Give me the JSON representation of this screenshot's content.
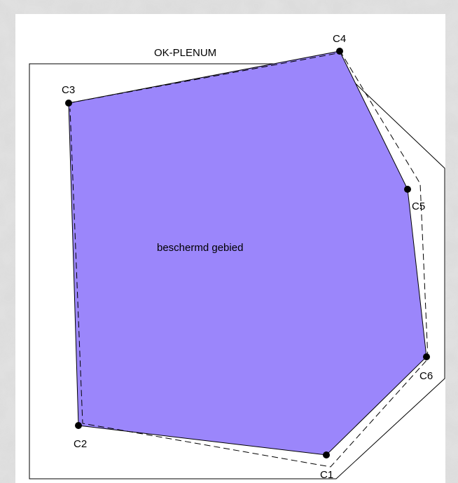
{
  "diagram": {
    "header_label": "OK-PLENUM",
    "zone_label": "beschermd gebied",
    "colors": {
      "zone_fill": "#9b86fb",
      "outline": "#000000",
      "background": "#ffffff"
    },
    "points": [
      {
        "id": "C1",
        "label": "C1"
      },
      {
        "id": "C2",
        "label": "C2"
      },
      {
        "id": "C3",
        "label": "C3"
      },
      {
        "id": "C4",
        "label": "C4"
      },
      {
        "id": "C5",
        "label": "C5"
      },
      {
        "id": "C6",
        "label": "C6"
      }
    ]
  }
}
